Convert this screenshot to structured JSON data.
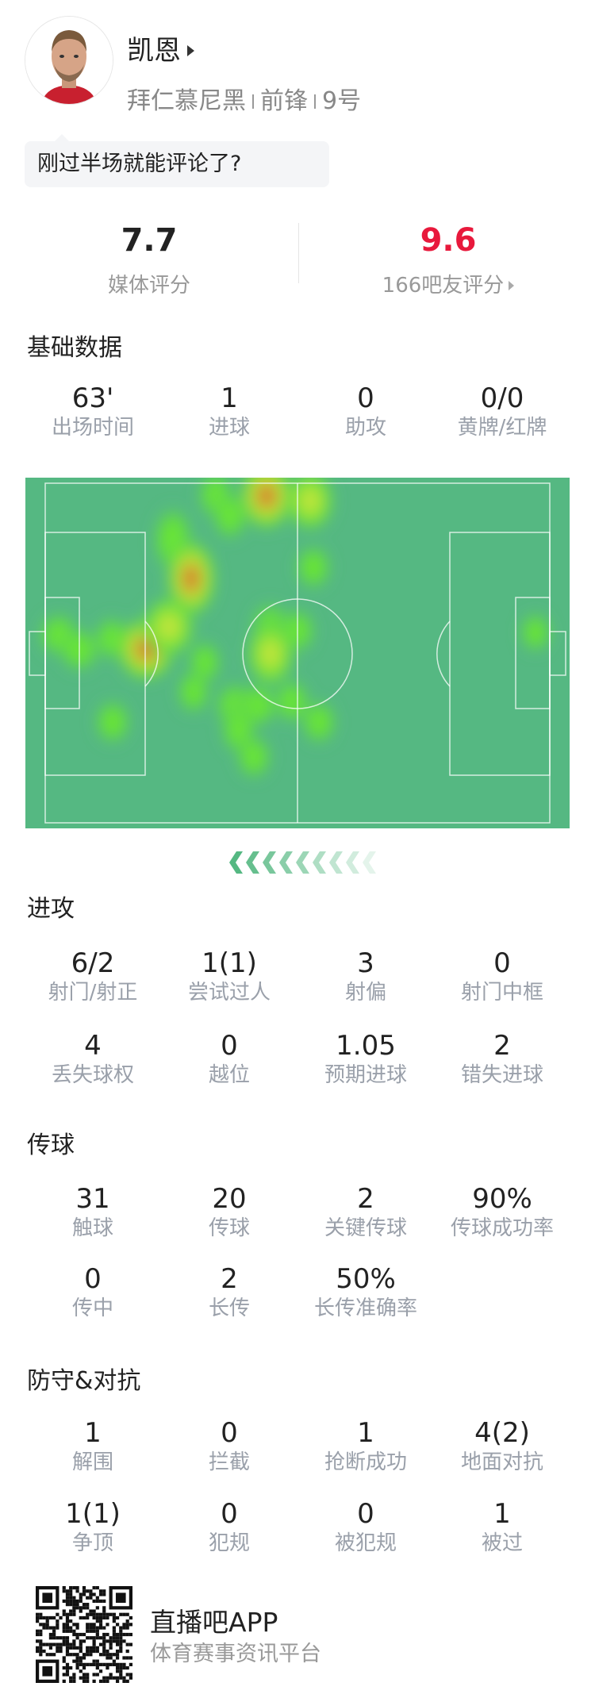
{
  "player": {
    "name": "凯恩",
    "team": "拜仁慕尼黑",
    "position": "前锋",
    "number": "9号",
    "comment_prompt": "刚过半场就能评论了?"
  },
  "ratings": {
    "media": {
      "value": "7.7",
      "label": "媒体评分"
    },
    "fans": {
      "value": "9.6",
      "label": "166吧友评分",
      "color": "#e8193c"
    }
  },
  "sections": [
    {
      "title": "基础数据",
      "rows": [
        [
          {
            "value": "63'",
            "label": "出场时间"
          },
          {
            "value": "1",
            "label": "进球"
          },
          {
            "value": "0",
            "label": "助攻"
          },
          {
            "value": "0/0",
            "label": "黄牌/红牌"
          }
        ]
      ]
    },
    {
      "title": "进攻",
      "rows": [
        [
          {
            "value": "6/2",
            "label": "射门/射正"
          },
          {
            "value": "1(1)",
            "label": "尝试过人"
          },
          {
            "value": "3",
            "label": "射偏"
          },
          {
            "value": "0",
            "label": "射门中框"
          }
        ],
        [
          {
            "value": "4",
            "label": "丢失球权"
          },
          {
            "value": "0",
            "label": "越位"
          },
          {
            "value": "1.05",
            "label": "预期进球"
          },
          {
            "value": "2",
            "label": "错失进球"
          }
        ]
      ]
    },
    {
      "title": "传球",
      "rows": [
        [
          {
            "value": "31",
            "label": "触球"
          },
          {
            "value": "20",
            "label": "传球"
          },
          {
            "value": "2",
            "label": "关键传球"
          },
          {
            "value": "90%",
            "label": "传球成功率"
          }
        ],
        [
          {
            "value": "0",
            "label": "传中"
          },
          {
            "value": "2",
            "label": "长传"
          },
          {
            "value": "50%",
            "label": "长传准确率"
          }
        ]
      ]
    },
    {
      "title": "防守&对抗",
      "rows": [
        [
          {
            "value": "1",
            "label": "解围"
          },
          {
            "value": "0",
            "label": "拦截"
          },
          {
            "value": "1",
            "label": "抢断成功"
          },
          {
            "value": "4(2)",
            "label": "地面对抗"
          }
        ],
        [
          {
            "value": "1(1)",
            "label": "争顶"
          },
          {
            "value": "0",
            "label": "犯规"
          },
          {
            "value": "0",
            "label": "被犯规"
          },
          {
            "value": "1",
            "label": "被过"
          }
        ]
      ]
    }
  ],
  "heatmap": {
    "pitch_color": "#55b882",
    "attack_direction": "left"
  },
  "footer": {
    "app_name": "直播吧APP",
    "tagline": "体育赛事资讯平台",
    "qr_icon": "qr-code-icon"
  }
}
